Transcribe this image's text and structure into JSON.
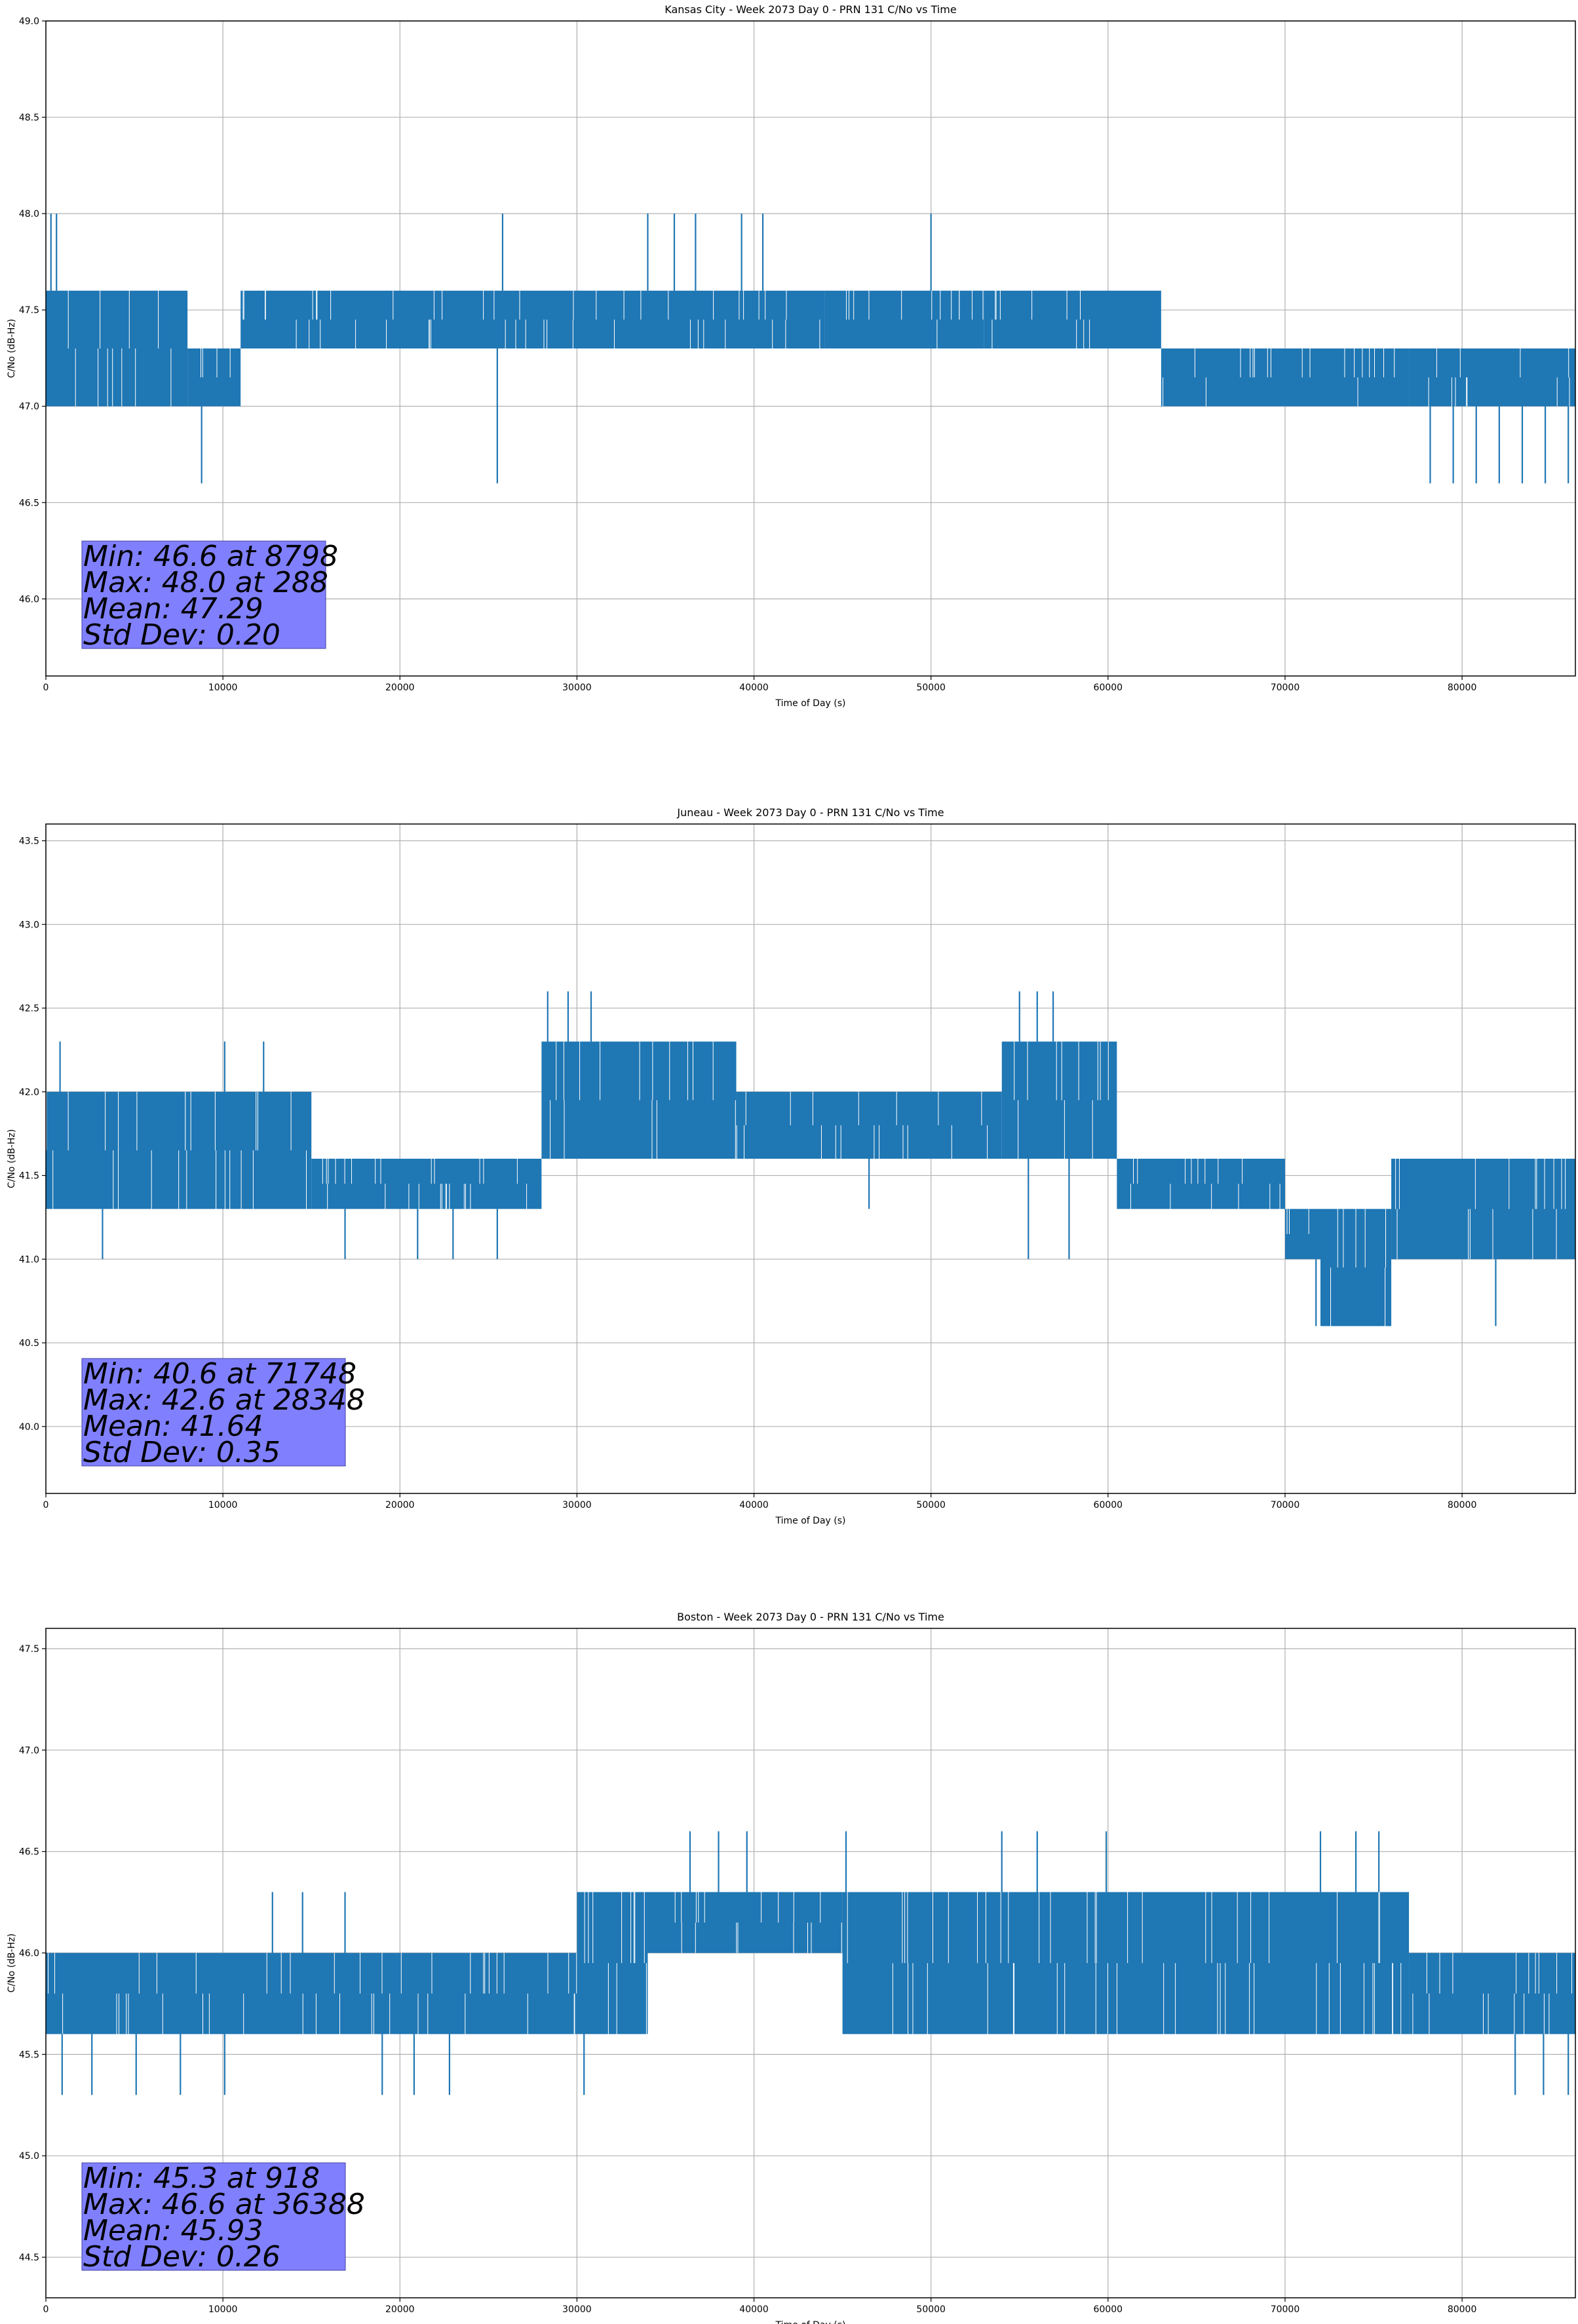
{
  "chart_data": [
    {
      "type": "line",
      "title": "Kansas City - Week 2073 Day 0 - PRN 131 C/No vs Time",
      "xlabel": "Time of Day (s)",
      "ylabel": "C/No (dB-Hz)",
      "xlim": [
        0,
        86400
      ],
      "ylim": [
        45.6,
        49.0
      ],
      "xticks": [
        0,
        10000,
        20000,
        30000,
        40000,
        50000,
        60000,
        70000,
        80000
      ],
      "yticks": [
        46.0,
        46.5,
        47.0,
        47.5,
        48.0,
        48.5,
        49.0
      ],
      "grid": true,
      "series": [
        {
          "color": "#1f77b4",
          "segments": [
            {
              "x_start": 0,
              "x_end": 8000,
              "low": 47.0,
              "high": 47.6
            },
            {
              "x_start": 8000,
              "x_end": 11000,
              "low": 47.0,
              "high": 47.3
            },
            {
              "x_start": 11000,
              "x_end": 44000,
              "low": 47.3,
              "high": 47.6
            },
            {
              "x_start": 44000,
              "x_end": 53000,
              "low": 47.3,
              "high": 47.6
            },
            {
              "x_start": 53000,
              "x_end": 63000,
              "low": 47.3,
              "high": 47.6
            },
            {
              "x_start": 63000,
              "x_end": 77000,
              "low": 47.0,
              "high": 47.3
            },
            {
              "x_start": 77000,
              "x_end": 86400,
              "low": 47.0,
              "high": 47.3
            }
          ],
          "spikes": [
            {
              "x": 288,
              "value": 48.0
            },
            {
              "x": 600,
              "value": 48.0
            },
            {
              "x": 8798,
              "value": 46.6
            },
            {
              "x": 25500,
              "value": 46.6
            },
            {
              "x": 25800,
              "value": 48.0
            },
            {
              "x": 34000,
              "value": 48.0
            },
            {
              "x": 35500,
              "value": 48.0
            },
            {
              "x": 36700,
              "value": 48.0
            },
            {
              "x": 39300,
              "value": 48.0
            },
            {
              "x": 40500,
              "value": 48.0
            },
            {
              "x": 50000,
              "value": 48.0
            },
            {
              "x": 78200,
              "value": 46.6
            },
            {
              "x": 79500,
              "value": 46.6
            },
            {
              "x": 80800,
              "value": 46.6
            },
            {
              "x": 82100,
              "value": 46.6
            },
            {
              "x": 83400,
              "value": 46.6
            },
            {
              "x": 84700,
              "value": 46.6
            },
            {
              "x": 86000,
              "value": 46.6
            }
          ]
        }
      ],
      "stats": {
        "min_line": "Min: 46.6 at 8798",
        "max_line": "Max: 48.0 at 288",
        "mean_line": "Mean: 47.29",
        "std_line": "Std Dev: 0.20"
      }
    },
    {
      "type": "line",
      "title": "Juneau - Week 2073 Day 0 - PRN 131 C/No vs Time",
      "xlabel": "Time of Day (s)",
      "ylabel": "C/No (dB-Hz)",
      "xlim": [
        0,
        86400
      ],
      "ylim": [
        39.6,
        43.6
      ],
      "xticks": [
        0,
        10000,
        20000,
        30000,
        40000,
        50000,
        60000,
        70000,
        80000
      ],
      "yticks": [
        40.0,
        40.5,
        41.0,
        41.5,
        42.0,
        42.5,
        43.0,
        43.5
      ],
      "grid": true,
      "series": [
        {
          "color": "#1f77b4",
          "segments": [
            {
              "x_start": 0,
              "x_end": 15000,
              "low": 41.3,
              "high": 42.0
            },
            {
              "x_start": 15000,
              "x_end": 28000,
              "low": 41.3,
              "high": 41.6
            },
            {
              "x_start": 28000,
              "x_end": 39000,
              "low": 41.6,
              "high": 42.3
            },
            {
              "x_start": 39000,
              "x_end": 54000,
              "low": 41.6,
              "high": 42.0
            },
            {
              "x_start": 54000,
              "x_end": 60500,
              "low": 41.6,
              "high": 42.3
            },
            {
              "x_start": 60500,
              "x_end": 70000,
              "low": 41.3,
              "high": 41.6
            },
            {
              "x_start": 70000,
              "x_end": 72000,
              "low": 41.0,
              "high": 41.3
            },
            {
              "x_start": 72000,
              "x_end": 76000,
              "low": 40.6,
              "high": 41.3
            },
            {
              "x_start": 76000,
              "x_end": 86400,
              "low": 41.0,
              "high": 41.6
            }
          ],
          "spikes": [
            {
              "x": 800,
              "value": 42.3
            },
            {
              "x": 3200,
              "value": 41.0
            },
            {
              "x": 10100,
              "value": 42.3
            },
            {
              "x": 12300,
              "value": 42.3
            },
            {
              "x": 16900,
              "value": 41.0
            },
            {
              "x": 21000,
              "value": 41.0
            },
            {
              "x": 23000,
              "value": 41.0
            },
            {
              "x": 25500,
              "value": 41.0
            },
            {
              "x": 28348,
              "value": 42.6
            },
            {
              "x": 29500,
              "value": 42.6
            },
            {
              "x": 30800,
              "value": 42.6
            },
            {
              "x": 46500,
              "value": 41.3
            },
            {
              "x": 55000,
              "value": 42.6
            },
            {
              "x": 56000,
              "value": 42.6
            },
            {
              "x": 56900,
              "value": 42.6
            },
            {
              "x": 55500,
              "value": 41.0
            },
            {
              "x": 57800,
              "value": 41.0
            },
            {
              "x": 71748,
              "value": 40.6
            },
            {
              "x": 81900,
              "value": 40.6
            }
          ]
        }
      ],
      "stats": {
        "min_line": "Min: 40.6 at 71748",
        "max_line": "Max: 42.6 at 28348",
        "mean_line": "Mean: 41.64",
        "std_line": "Std Dev: 0.35"
      }
    },
    {
      "type": "line",
      "title": "Boston - Week 2073 Day 0 - PRN 131 C/No vs Time",
      "xlabel": "Time of Day (s)",
      "ylabel": "C/No (dB-Hz)",
      "xlim": [
        0,
        86400
      ],
      "ylim": [
        44.3,
        47.6
      ],
      "xticks": [
        0,
        10000,
        20000,
        30000,
        40000,
        50000,
        60000,
        70000,
        80000
      ],
      "yticks": [
        44.5,
        45.0,
        45.5,
        46.0,
        46.5,
        47.0,
        47.5
      ],
      "grid": true,
      "series": [
        {
          "color": "#1f77b4",
          "segments": [
            {
              "x_start": 0,
              "x_end": 30000,
              "low": 45.6,
              "high": 46.0
            },
            {
              "x_start": 30000,
              "x_end": 34000,
              "low": 45.6,
              "high": 46.3
            },
            {
              "x_start": 34000,
              "x_end": 45000,
              "low": 46.0,
              "high": 46.3
            },
            {
              "x_start": 45000,
              "x_end": 77000,
              "low": 45.6,
              "high": 46.3
            },
            {
              "x_start": 77000,
              "x_end": 86400,
              "low": 45.6,
              "high": 46.0
            }
          ],
          "spikes": [
            {
              "x": 918,
              "value": 45.3
            },
            {
              "x": 2600,
              "value": 45.3
            },
            {
              "x": 5100,
              "value": 45.3
            },
            {
              "x": 7600,
              "value": 45.3
            },
            {
              "x": 10100,
              "value": 45.3
            },
            {
              "x": 12800,
              "value": 46.3
            },
            {
              "x": 14500,
              "value": 46.3
            },
            {
              "x": 16900,
              "value": 46.3
            },
            {
              "x": 19000,
              "value": 45.3
            },
            {
              "x": 20800,
              "value": 45.3
            },
            {
              "x": 22800,
              "value": 45.3
            },
            {
              "x": 30400,
              "value": 45.3
            },
            {
              "x": 36388,
              "value": 46.6
            },
            {
              "x": 38000,
              "value": 46.6
            },
            {
              "x": 39600,
              "value": 46.6
            },
            {
              "x": 45200,
              "value": 46.6
            },
            {
              "x": 54000,
              "value": 46.6
            },
            {
              "x": 56000,
              "value": 46.6
            },
            {
              "x": 59900,
              "value": 46.6
            },
            {
              "x": 72000,
              "value": 46.6
            },
            {
              "x": 74000,
              "value": 46.6
            },
            {
              "x": 75300,
              "value": 46.6
            },
            {
              "x": 83000,
              "value": 45.3
            },
            {
              "x": 84600,
              "value": 45.3
            },
            {
              "x": 86000,
              "value": 45.3
            }
          ]
        }
      ],
      "stats": {
        "min_line": "Min: 45.3 at 918",
        "max_line": "Max: 46.6 at 36388",
        "mean_line": "Mean: 45.93",
        "std_line": "Std Dev: 0.26"
      }
    }
  ]
}
